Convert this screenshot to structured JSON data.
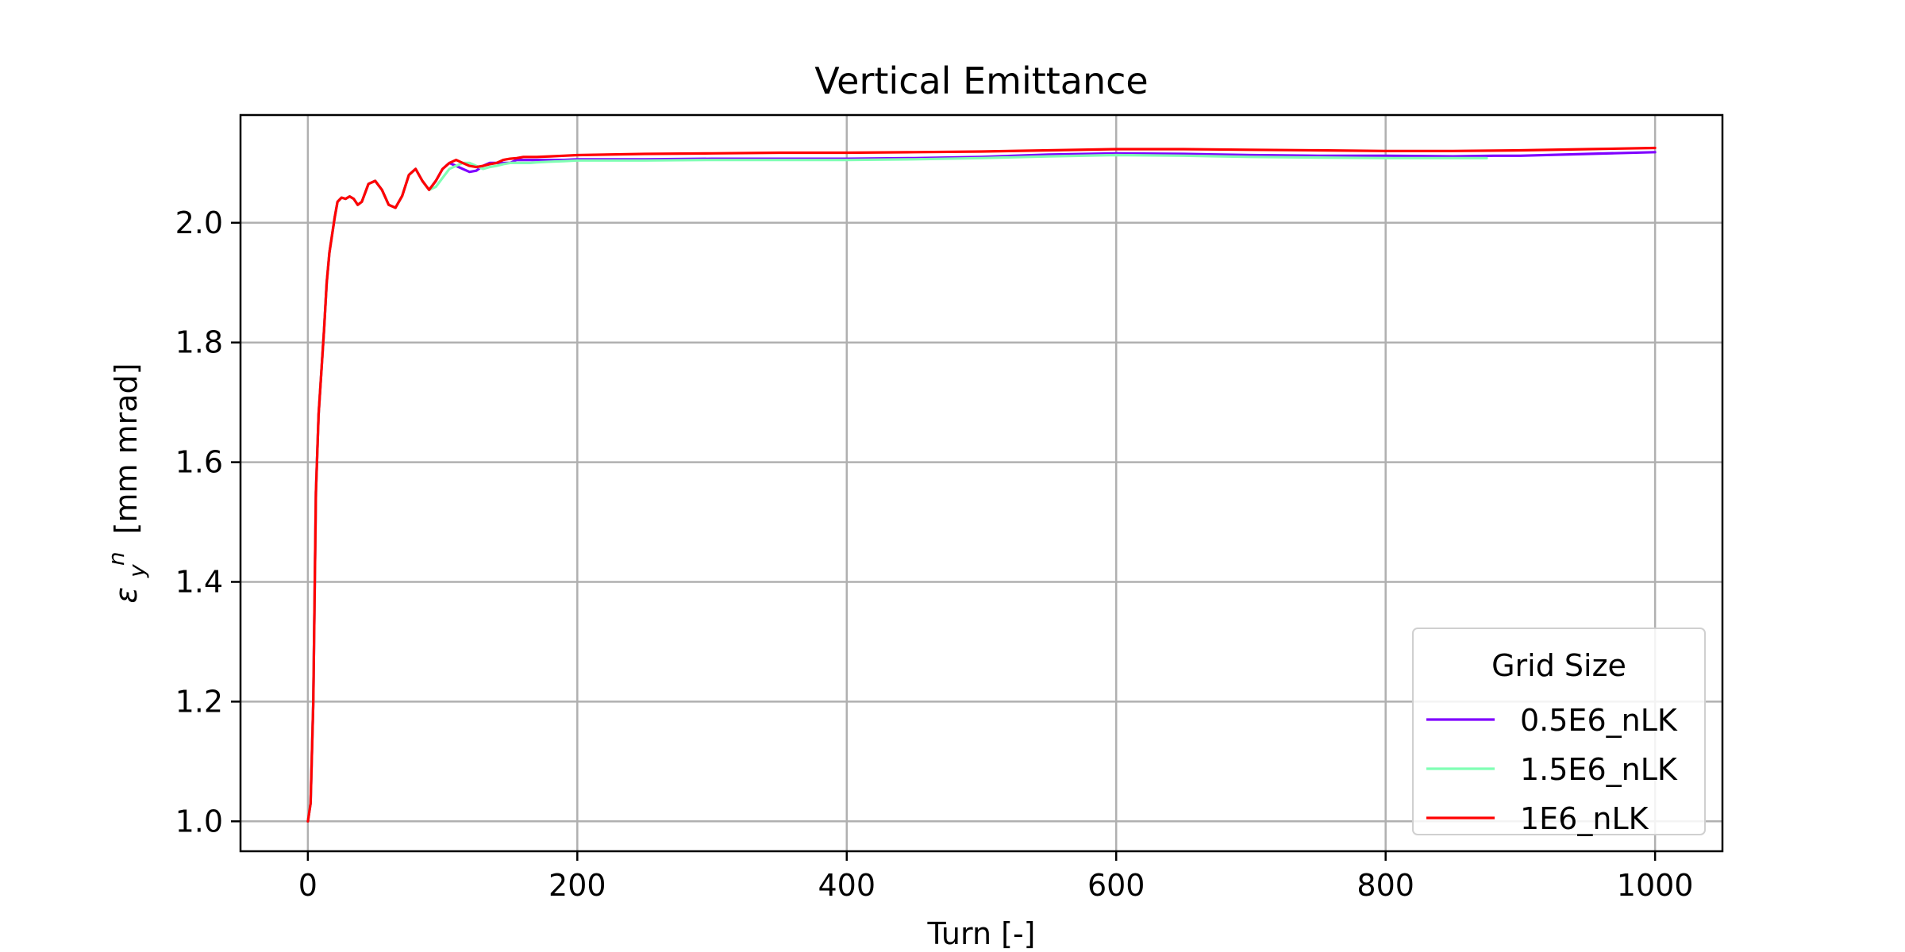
{
  "chart_data": {
    "type": "line",
    "title": "Vertical Emittance",
    "xlabel": "Turn [-]",
    "ylabel": "[mm mrad]",
    "ylabel_symbol": "ε",
    "ylabel_sub": "y",
    "ylabel_sup": "n",
    "xlim": [
      -50,
      1050
    ],
    "ylim": [
      0.95,
      2.18
    ],
    "x_ticks": [
      0,
      200,
      400,
      600,
      800,
      1000
    ],
    "x_tick_labels": [
      "0",
      "200",
      "400",
      "600",
      "800",
      "1000"
    ],
    "y_ticks": [
      1.0,
      1.2,
      1.4,
      1.6,
      1.8,
      2.0
    ],
    "y_tick_labels": [
      "1.0",
      "1.2",
      "1.4",
      "1.6",
      "1.8",
      "2.0"
    ],
    "grid": true,
    "legend": {
      "title": "Grid Size",
      "placement": "lower-right"
    },
    "series": [
      {
        "name": "0.5E6_nLK",
        "color": "#7f00ff",
        "x": [
          0,
          2,
          4,
          6,
          8,
          10,
          12,
          14,
          16,
          18,
          20,
          22,
          25,
          28,
          31,
          34,
          37,
          40,
          45,
          50,
          55,
          60,
          65,
          70,
          75,
          80,
          85,
          90,
          95,
          100,
          105,
          110,
          115,
          120,
          125,
          130,
          135,
          140,
          145,
          150,
          155,
          160,
          165,
          170,
          180,
          190,
          200,
          250,
          300,
          350,
          400,
          450,
          500,
          550,
          600,
          650,
          700,
          750,
          800,
          850,
          880,
          900,
          950,
          1000
        ],
        "y": [
          1.0,
          1.03,
          1.2,
          1.55,
          1.68,
          1.75,
          1.82,
          1.9,
          1.95,
          1.98,
          2.01,
          2.035,
          2.042,
          2.04,
          2.044,
          2.04,
          2.03,
          2.035,
          2.065,
          2.07,
          2.055,
          2.03,
          2.025,
          2.045,
          2.08,
          2.09,
          2.07,
          2.055,
          2.07,
          2.09,
          2.1,
          2.095,
          2.09,
          2.085,
          2.087,
          2.095,
          2.1,
          2.1,
          2.1,
          2.1,
          2.105,
          2.105,
          2.105,
          2.105,
          2.105,
          2.105,
          2.106,
          2.106,
          2.107,
          2.107,
          2.107,
          2.108,
          2.11,
          2.114,
          2.116,
          2.115,
          2.113,
          2.112,
          2.112,
          2.111,
          2.112,
          2.112,
          2.115,
          2.118
        ]
      },
      {
        "name": "1.5E6_nLK",
        "color": "#80ffb4",
        "x": [
          0,
          2,
          4,
          6,
          8,
          10,
          12,
          14,
          16,
          18,
          20,
          22,
          25,
          28,
          31,
          34,
          37,
          40,
          45,
          50,
          55,
          60,
          65,
          70,
          75,
          80,
          85,
          90,
          95,
          100,
          105,
          110,
          115,
          120,
          125,
          130,
          135,
          140,
          145,
          150,
          155,
          160,
          165,
          170,
          180,
          190,
          200,
          250,
          300,
          350,
          400,
          450,
          500,
          550,
          600,
          650,
          700,
          750,
          800,
          850,
          875
        ],
        "y": [
          1.0,
          1.03,
          1.2,
          1.55,
          1.68,
          1.75,
          1.82,
          1.9,
          1.95,
          1.98,
          2.01,
          2.035,
          2.042,
          2.04,
          2.044,
          2.04,
          2.03,
          2.035,
          2.065,
          2.07,
          2.055,
          2.03,
          2.025,
          2.045,
          2.08,
          2.09,
          2.07,
          2.055,
          2.06,
          2.075,
          2.09,
          2.095,
          2.1,
          2.1,
          2.095,
          2.09,
          2.093,
          2.095,
          2.098,
          2.1,
          2.1,
          2.1,
          2.1,
          2.101,
          2.102,
          2.103,
          2.104,
          2.104,
          2.105,
          2.105,
          2.105,
          2.106,
          2.108,
          2.111,
          2.113,
          2.112,
          2.11,
          2.109,
          2.108,
          2.108,
          2.108
        ]
      },
      {
        "name": "1E6_nLK",
        "color": "#ff0000",
        "x": [
          0,
          2,
          4,
          6,
          8,
          10,
          12,
          14,
          16,
          18,
          20,
          22,
          25,
          28,
          31,
          34,
          37,
          40,
          45,
          50,
          55,
          60,
          65,
          70,
          75,
          80,
          85,
          90,
          95,
          100,
          105,
          110,
          115,
          120,
          125,
          130,
          135,
          140,
          145,
          150,
          155,
          160,
          165,
          170,
          180,
          190,
          200,
          250,
          300,
          350,
          400,
          450,
          500,
          550,
          600,
          650,
          700,
          750,
          800,
          850,
          900,
          950,
          1000
        ],
        "y": [
          1.0,
          1.03,
          1.2,
          1.55,
          1.68,
          1.75,
          1.82,
          1.9,
          1.95,
          1.98,
          2.01,
          2.035,
          2.042,
          2.04,
          2.044,
          2.04,
          2.03,
          2.035,
          2.065,
          2.07,
          2.055,
          2.03,
          2.025,
          2.045,
          2.08,
          2.09,
          2.07,
          2.055,
          2.07,
          2.09,
          2.1,
          2.105,
          2.1,
          2.095,
          2.093,
          2.095,
          2.098,
          2.1,
          2.105,
          2.107,
          2.108,
          2.11,
          2.11,
          2.11,
          2.111,
          2.112,
          2.113,
          2.115,
          2.116,
          2.117,
          2.117,
          2.118,
          2.119,
          2.121,
          2.123,
          2.123,
          2.122,
          2.121,
          2.12,
          2.12,
          2.121,
          2.123,
          2.125
        ]
      }
    ]
  }
}
